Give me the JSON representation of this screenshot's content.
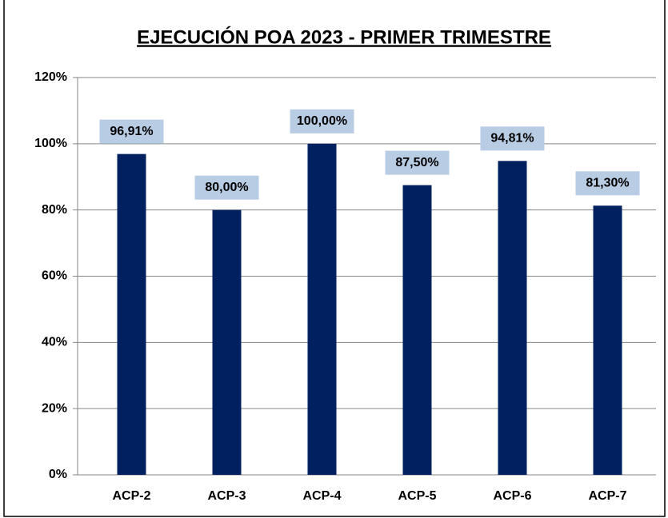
{
  "chart_data": {
    "type": "bar",
    "title": "EJECUCIÓN POA 2023 - PRIMER TRIMESTRE",
    "categories": [
      "ACP-2",
      "ACP-3",
      "ACP-4",
      "ACP-5",
      "ACP-6",
      "ACP-7"
    ],
    "values": [
      96.91,
      80,
      100,
      87.5,
      94.81,
      81.3
    ],
    "value_labels": [
      "96,91%",
      "80,00%",
      "100,00%",
      "87,50%",
      "94,81%",
      "81,30%"
    ],
    "color": "#002060",
    "ylim": [
      0,
      120
    ],
    "yticks": [
      {
        "value": 0,
        "label": "0%"
      },
      {
        "value": 20,
        "label": "20%"
      },
      {
        "value": 40,
        "label": "40%"
      },
      {
        "value": 60,
        "label": "60%"
      },
      {
        "value": 80,
        "label": "80%"
      },
      {
        "value": 100,
        "label": "100%"
      },
      {
        "value": 120,
        "label": "120%"
      }
    ],
    "grid": true
  }
}
